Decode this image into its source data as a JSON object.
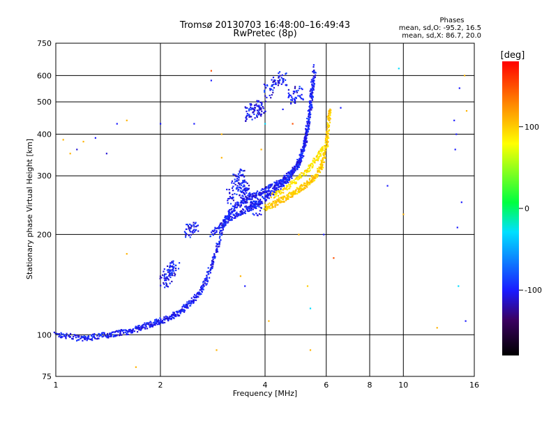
{
  "chart_data": {
    "type": "scatter",
    "title": "Tromsø 20130703 16:48:00–16:49:43",
    "subtitle": "RwPretec (8p)",
    "xlabel": "Frequency [MHz]",
    "ylabel": "Stationary phase Virtual Height [km]",
    "x_scale": "log",
    "y_scale": "log",
    "xlim": [
      1,
      16
    ],
    "ylim": [
      75,
      750
    ],
    "x_ticks": [
      1,
      2,
      4,
      6,
      8,
      10,
      16
    ],
    "x_tick_labels": [
      "1",
      "2",
      "4",
      "6",
      "8",
      "10",
      "16"
    ],
    "x_gridlines": [
      2,
      4,
      6,
      8,
      10
    ],
    "y_ticks": [
      75,
      100,
      200,
      300,
      400,
      500,
      600,
      750
    ],
    "y_tick_labels": [
      "75",
      "100",
      "200",
      "300",
      "400",
      "500",
      "600",
      "750"
    ],
    "y_gridlines": [
      100,
      200,
      300,
      400,
      500,
      600
    ],
    "grid": true,
    "stats": {
      "heading": "Phases",
      "line_o": "mean, sd,O: -95.2, 16.5",
      "line_x": "mean, sd,X:  86.7, 20.0"
    },
    "colorbar": {
      "label": "[deg]",
      "min": -180,
      "max": 180,
      "ticks": [
        100,
        0,
        -100
      ],
      "tick_labels": [
        "100",
        "0",
        "-100"
      ]
    },
    "traces": {
      "o_low": {
        "phase": -100,
        "points": [
          [
            1.0,
            100
          ],
          [
            1.1,
            99
          ],
          [
            1.2,
            97
          ],
          [
            1.3,
            99
          ],
          [
            1.4,
            100
          ],
          [
            1.5,
            101
          ],
          [
            1.6,
            102
          ],
          [
            1.7,
            104
          ],
          [
            1.8,
            106
          ],
          [
            1.9,
            108
          ],
          [
            2.0,
            110
          ],
          [
            2.1,
            112
          ],
          [
            2.2,
            115
          ],
          [
            2.3,
            118
          ],
          [
            2.4,
            123
          ],
          [
            2.5,
            128
          ],
          [
            2.6,
            135
          ],
          [
            2.7,
            145
          ],
          [
            2.8,
            160
          ],
          [
            2.9,
            180
          ],
          [
            3.0,
            205
          ],
          [
            3.1,
            225
          ],
          [
            3.2,
            238
          ],
          [
            3.4,
            248
          ],
          [
            3.6,
            257
          ],
          [
            3.8,
            265
          ],
          [
            4.0,
            272
          ],
          [
            4.2,
            280
          ],
          [
            4.4,
            288
          ],
          [
            4.6,
            297
          ],
          [
            4.8,
            310
          ],
          [
            5.0,
            330
          ],
          [
            5.2,
            370
          ],
          [
            5.3,
            410
          ],
          [
            5.4,
            480
          ],
          [
            5.5,
            560
          ],
          [
            5.55,
            640
          ]
        ]
      },
      "o_high": {
        "phase": -100,
        "points": [
          [
            2.8,
            200
          ],
          [
            3.0,
            215
          ],
          [
            3.2,
            225
          ],
          [
            3.4,
            232
          ],
          [
            3.6,
            240
          ],
          [
            3.8,
            248
          ],
          [
            4.0,
            258
          ],
          [
            4.2,
            268
          ],
          [
            4.4,
            278
          ],
          [
            4.6,
            290
          ],
          [
            4.8,
            305
          ],
          [
            5.0,
            325
          ],
          [
            5.1,
            345
          ],
          [
            5.2,
            375
          ],
          [
            5.3,
            420
          ],
          [
            5.4,
            500
          ],
          [
            5.5,
            590
          ]
        ]
      },
      "o_blobs": {
        "phase": -100,
        "points": [
          [
            2.05,
            145
          ],
          [
            2.1,
            150
          ],
          [
            2.15,
            155
          ],
          [
            2.2,
            160
          ],
          [
            2.4,
            205
          ],
          [
            2.5,
            207
          ],
          [
            3.2,
            260
          ],
          [
            3.4,
            270
          ],
          [
            3.5,
            265
          ],
          [
            3.6,
            255
          ],
          [
            3.7,
            250
          ],
          [
            3.3,
            290
          ],
          [
            3.4,
            300
          ],
          [
            3.5,
            280
          ],
          [
            3.8,
            240
          ],
          [
            3.6,
            460
          ],
          [
            3.7,
            470
          ],
          [
            3.8,
            475
          ],
          [
            3.9,
            480
          ],
          [
            4.1,
            540
          ],
          [
            4.3,
            570
          ],
          [
            4.5,
            590
          ],
          [
            4.8,
            520
          ],
          [
            5.0,
            530
          ]
        ]
      },
      "x_trace": {
        "phase": 100,
        "points": [
          [
            4.0,
            240
          ],
          [
            4.2,
            245
          ],
          [
            4.4,
            252
          ],
          [
            4.6,
            258
          ],
          [
            4.8,
            265
          ],
          [
            5.0,
            272
          ],
          [
            5.2,
            280
          ],
          [
            5.4,
            290
          ],
          [
            5.6,
            300
          ],
          [
            5.8,
            318
          ],
          [
            5.9,
            340
          ],
          [
            6.0,
            370
          ],
          [
            6.05,
            400
          ],
          [
            6.1,
            440
          ],
          [
            6.15,
            480
          ]
        ]
      },
      "x_trace2": {
        "phase": 90,
        "points": [
          [
            4.2,
            260
          ],
          [
            4.5,
            270
          ],
          [
            4.8,
            285
          ],
          [
            5.1,
            300
          ],
          [
            5.4,
            320
          ],
          [
            5.7,
            345
          ],
          [
            5.9,
            365
          ]
        ]
      },
      "scatter": {
        "points": [
          [
            1.05,
            385,
            110
          ],
          [
            1.1,
            350,
            110
          ],
          [
            1.15,
            360,
            -110
          ],
          [
            1.2,
            380,
            110
          ],
          [
            1.3,
            390,
            -100
          ],
          [
            1.4,
            350,
            -110
          ],
          [
            1.5,
            430,
            -100
          ],
          [
            1.6,
            440,
            110
          ],
          [
            2.0,
            430,
            -100
          ],
          [
            2.5,
            430,
            -100
          ],
          [
            2.8,
            620,
            150
          ],
          [
            2.8,
            580,
            -100
          ],
          [
            3.0,
            400,
            110
          ],
          [
            3.0,
            340,
            110
          ],
          [
            3.4,
            150,
            110
          ],
          [
            3.5,
            140,
            -100
          ],
          [
            3.9,
            360,
            110
          ],
          [
            4.0,
            430,
            -30
          ],
          [
            4.5,
            475,
            -100
          ],
          [
            4.8,
            430,
            150
          ],
          [
            5.0,
            200,
            110
          ],
          [
            5.3,
            140,
            100
          ],
          [
            5.4,
            120,
            -30
          ],
          [
            5.9,
            200,
            -100
          ],
          [
            6.3,
            170,
            150
          ],
          [
            6.6,
            480,
            -100
          ],
          [
            9.0,
            280,
            -100
          ],
          [
            9.7,
            630,
            -30
          ],
          [
            10.0,
            230,
            110
          ],
          [
            12.5,
            105,
            110
          ],
          [
            14.0,
            440,
            -100
          ],
          [
            14.2,
            400,
            -100
          ],
          [
            14.1,
            360,
            -100
          ],
          [
            14.5,
            550,
            -100
          ],
          [
            14.3,
            210,
            -100
          ],
          [
            14.4,
            140,
            -30
          ],
          [
            15.0,
            600,
            110
          ],
          [
            15.2,
            470,
            110
          ],
          [
            14.7,
            250,
            -100
          ],
          [
            15.1,
            110,
            -100
          ],
          [
            1.7,
            80,
            110
          ],
          [
            1.6,
            175,
            110
          ],
          [
            2.9,
            90,
            110
          ],
          [
            4.1,
            110,
            110
          ],
          [
            5.4,
            90,
            110
          ]
        ]
      }
    }
  }
}
